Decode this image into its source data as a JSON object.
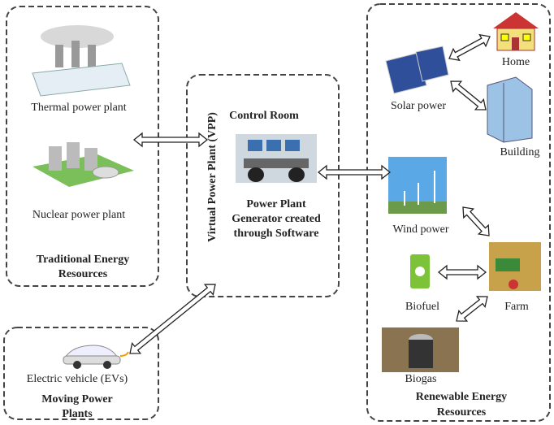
{
  "groups": {
    "traditional": {
      "title": [
        "Traditional Energy",
        "Resources"
      ],
      "items": [
        "Thermal power plant",
        "Nuclear power plant"
      ]
    },
    "vpp": {
      "side_label": "Virtual Power Plant (VPP)",
      "title": "Control Room",
      "caption": [
        "Power Plant",
        "Generator created",
        "through Software"
      ]
    },
    "moving": {
      "title": [
        "Moving Power",
        "Plants"
      ],
      "items": [
        "Electric vehicle (EVs)"
      ]
    },
    "renewable": {
      "title": [
        "Renewable Energy",
        "Resources"
      ],
      "items": [
        "Home",
        "Solar power",
        "Building",
        "Wind power",
        "Biofuel",
        "Farm",
        "Biogas"
      ]
    }
  }
}
